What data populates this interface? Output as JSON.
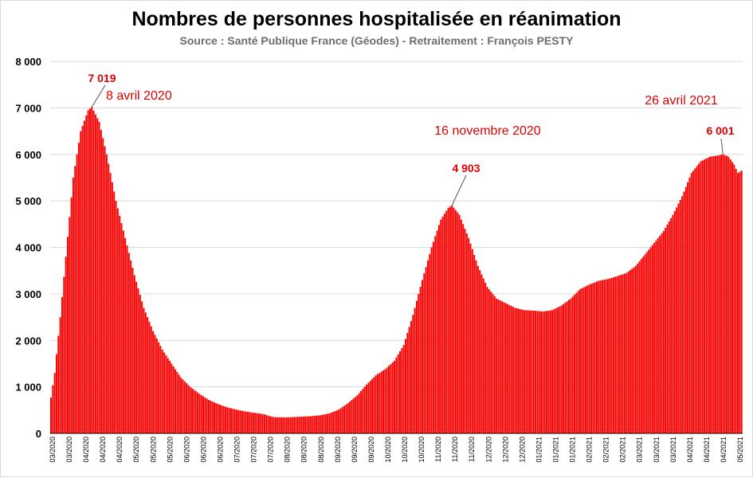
{
  "chart_data": {
    "type": "bar",
    "title": "Nombres de personnes hospitalisée en réanimation",
    "subtitle": "Source : Santé Publique France (Géodes) - Retraitement : François PESTY",
    "xlabel": "",
    "ylabel": "",
    "ylim": [
      0,
      8000
    ],
    "grid": true,
    "legend": "none",
    "colors": {
      "bar": "#ff0000",
      "annotation": "#e00000",
      "grid": "#d9d9d9"
    },
    "y_ticks": [
      {
        "value": 0,
        "label": "0"
      },
      {
        "value": 1000,
        "label": "1 000"
      },
      {
        "value": 2000,
        "label": "2 000"
      },
      {
        "value": 3000,
        "label": "3 000"
      },
      {
        "value": 4000,
        "label": "4 000"
      },
      {
        "value": 5000,
        "label": "5 000"
      },
      {
        "value": 6000,
        "label": "6 000"
      },
      {
        "value": 7000,
        "label": "7 000"
      },
      {
        "value": 8000,
        "label": "8 000"
      }
    ],
    "x_ticks": [
      "03/2020",
      "03/2020",
      "04/2020",
      "04/2020",
      "04/2020",
      "05/2020",
      "05/2020",
      "05/2020",
      "06/2020",
      "06/2020",
      "06/2020",
      "07/2020",
      "07/2020",
      "07/2020",
      "08/2020",
      "08/2020",
      "08/2020",
      "09/2020",
      "09/2020",
      "09/2020",
      "10/2020",
      "10/2020",
      "10/2020",
      "11/2020",
      "11/2020",
      "11/2020",
      "12/2020",
      "12/2020",
      "12/2020",
      "01/2021",
      "01/2021",
      "01/2021",
      "02/2021",
      "02/2021",
      "02/2021",
      "03/2021",
      "03/2021",
      "03/2021",
      "04/2021",
      "04/2021",
      "04/2021",
      "05/2021"
    ],
    "keypoints": [
      [
        0,
        770
      ],
      [
        2,
        1300
      ],
      [
        5,
        2500
      ],
      [
        8,
        3800
      ],
      [
        12,
        5500
      ],
      [
        16,
        6500
      ],
      [
        20,
        6950
      ],
      [
        22,
        7019
      ],
      [
        26,
        6700
      ],
      [
        30,
        6000
      ],
      [
        35,
        5000
      ],
      [
        40,
        4200
      ],
      [
        45,
        3400
      ],
      [
        50,
        2700
      ],
      [
        55,
        2200
      ],
      [
        60,
        1800
      ],
      [
        65,
        1500
      ],
      [
        70,
        1200
      ],
      [
        75,
        1000
      ],
      [
        80,
        850
      ],
      [
        85,
        720
      ],
      [
        90,
        630
      ],
      [
        95,
        560
      ],
      [
        100,
        510
      ],
      [
        105,
        470
      ],
      [
        110,
        440
      ],
      [
        115,
        410
      ],
      [
        118,
        370
      ],
      [
        120,
        350
      ],
      [
        125,
        345
      ],
      [
        130,
        350
      ],
      [
        135,
        360
      ],
      [
        140,
        370
      ],
      [
        145,
        390
      ],
      [
        150,
        430
      ],
      [
        155,
        510
      ],
      [
        160,
        650
      ],
      [
        165,
        820
      ],
      [
        170,
        1050
      ],
      [
        175,
        1250
      ],
      [
        180,
        1380
      ],
      [
        185,
        1560
      ],
      [
        190,
        1900
      ],
      [
        195,
        2550
      ],
      [
        200,
        3300
      ],
      [
        205,
        4000
      ],
      [
        210,
        4600
      ],
      [
        214,
        4850
      ],
      [
        216,
        4903
      ],
      [
        220,
        4700
      ],
      [
        225,
        4200
      ],
      [
        230,
        3600
      ],
      [
        235,
        3150
      ],
      [
        240,
        2900
      ],
      [
        245,
        2800
      ],
      [
        250,
        2700
      ],
      [
        255,
        2650
      ],
      [
        260,
        2640
      ],
      [
        265,
        2620
      ],
      [
        270,
        2650
      ],
      [
        275,
        2750
      ],
      [
        280,
        2900
      ],
      [
        285,
        3100
      ],
      [
        290,
        3200
      ],
      [
        295,
        3280
      ],
      [
        300,
        3320
      ],
      [
        305,
        3380
      ],
      [
        310,
        3450
      ],
      [
        315,
        3600
      ],
      [
        320,
        3850
      ],
      [
        325,
        4100
      ],
      [
        330,
        4350
      ],
      [
        335,
        4700
      ],
      [
        340,
        5100
      ],
      [
        345,
        5600
      ],
      [
        350,
        5850
      ],
      [
        355,
        5950
      ],
      [
        360,
        5980
      ],
      [
        362,
        6001
      ],
      [
        365,
        5950
      ],
      [
        368,
        5780
      ],
      [
        370,
        5600
      ],
      [
        372,
        5650
      ]
    ],
    "annotations": [
      {
        "value_label": "7 019",
        "date_label": "8 avril 2020",
        "index": 22,
        "value": 7019
      },
      {
        "value_label": "4 903",
        "date_label": "16 novembre 2020",
        "index": 216,
        "value": 4903
      },
      {
        "value_label": "6 001",
        "date_label": "26 avril 2021",
        "index": 362,
        "value": 6001
      }
    ]
  }
}
